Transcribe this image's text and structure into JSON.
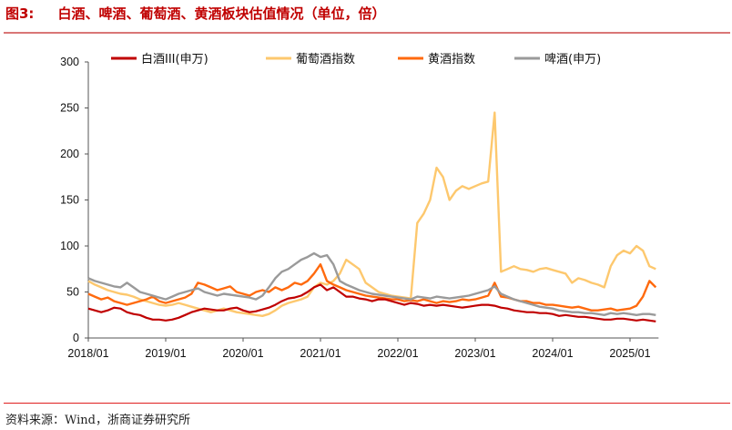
{
  "header": {
    "figure_no": "图3:",
    "title": "白酒、啤酒、葡萄酒、黄酒板块估值情况（单位，倍）"
  },
  "footer": {
    "source": "资料来源：Wind，浙商证券研究所"
  },
  "chart_data": {
    "type": "line",
    "title": "",
    "xlabel": "",
    "ylabel": "",
    "ylim": [
      0,
      300
    ],
    "yticks": [
      "0",
      "50",
      "100",
      "150",
      "200",
      "250",
      "300"
    ],
    "xticks": [
      "2018/01",
      "2019/01",
      "2020/01",
      "2021/01",
      "2022/01",
      "2023/01",
      "2024/01",
      "2025/01"
    ],
    "x_start": "2018/01",
    "x_step": "monthly",
    "legend_position": "top",
    "grid": false,
    "series": [
      {
        "name": "白酒III(申万)",
        "color": "#c00000",
        "values": [
          32,
          30,
          28,
          30,
          33,
          32,
          28,
          26,
          25,
          22,
          20,
          20,
          19,
          20,
          22,
          25,
          28,
          30,
          32,
          31,
          30,
          30,
          32,
          33,
          30,
          28,
          29,
          31,
          33,
          36,
          40,
          43,
          44,
          46,
          50,
          55,
          58,
          52,
          55,
          50,
          45,
          45,
          43,
          42,
          40,
          42,
          42,
          40,
          38,
          36,
          38,
          37,
          35,
          36,
          35,
          36,
          35,
          34,
          33,
          34,
          35,
          36,
          36,
          35,
          33,
          32,
          30,
          29,
          28,
          28,
          27,
          27,
          26,
          24,
          25,
          24,
          23,
          23,
          22,
          21,
          20,
          20,
          21,
          21,
          20,
          19,
          20,
          19,
          18
        ]
      },
      {
        "name": "葡萄酒指数",
        "color": "#fdc86e",
        "values": [
          62,
          58,
          55,
          52,
          50,
          48,
          47,
          45,
          42,
          40,
          38,
          36,
          35,
          36,
          38,
          36,
          34,
          32,
          30,
          28,
          30,
          32,
          30,
          28,
          27,
          26,
          25,
          24,
          26,
          30,
          35,
          38,
          40,
          42,
          45,
          55,
          60,
          58,
          62,
          70,
          85,
          80,
          75,
          60,
          55,
          50,
          48,
          46,
          45,
          44,
          43,
          125,
          135,
          150,
          185,
          175,
          150,
          160,
          165,
          162,
          165,
          168,
          170,
          245,
          72,
          75,
          78,
          75,
          74,
          72,
          75,
          76,
          74,
          72,
          70,
          60,
          65,
          63,
          60,
          58,
          55,
          78,
          90,
          95,
          92,
          100,
          95,
          78,
          75
        ]
      },
      {
        "name": "黄酒指数",
        "color": "#ff6a0e",
        "values": [
          48,
          45,
          42,
          44,
          40,
          38,
          36,
          38,
          40,
          42,
          45,
          40,
          38,
          40,
          42,
          44,
          48,
          60,
          58,
          55,
          52,
          54,
          56,
          50,
          48,
          46,
          50,
          52,
          50,
          55,
          52,
          55,
          60,
          58,
          62,
          70,
          80,
          62,
          58,
          55,
          52,
          50,
          48,
          46,
          45,
          44,
          43,
          42,
          42,
          40,
          41,
          40,
          42,
          40,
          38,
          40,
          39,
          40,
          42,
          41,
          42,
          44,
          46,
          60,
          45,
          44,
          42,
          40,
          40,
          38,
          38,
          36,
          36,
          35,
          34,
          33,
          34,
          32,
          30,
          30,
          31,
          32,
          30,
          31,
          32,
          35,
          45,
          62,
          55
        ]
      },
      {
        "name": "啤酒(申万)",
        "color": "#9a9a9a",
        "values": [
          65,
          62,
          60,
          58,
          56,
          55,
          60,
          55,
          50,
          48,
          46,
          44,
          42,
          45,
          48,
          50,
          52,
          54,
          50,
          48,
          46,
          48,
          47,
          46,
          45,
          44,
          42,
          46,
          55,
          65,
          72,
          75,
          80,
          85,
          88,
          92,
          88,
          90,
          80,
          62,
          58,
          55,
          52,
          50,
          48,
          47,
          46,
          45,
          44,
          43,
          42,
          45,
          44,
          43,
          45,
          44,
          43,
          44,
          45,
          46,
          48,
          50,
          52,
          56,
          48,
          45,
          42,
          40,
          38,
          36,
          34,
          33,
          32,
          30,
          29,
          28,
          28,
          27,
          27,
          26,
          25,
          27,
          26,
          27,
          26,
          25,
          26,
          26,
          25
        ]
      }
    ]
  }
}
